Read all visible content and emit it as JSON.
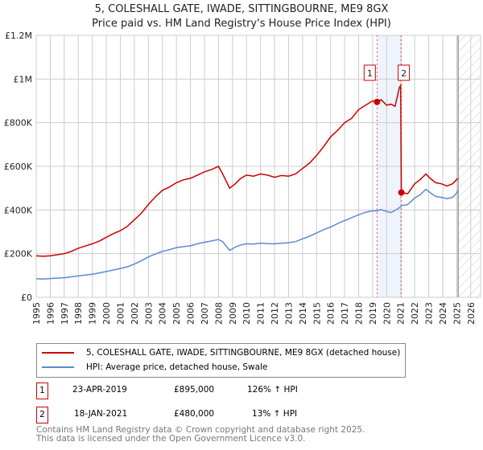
{
  "chart_data": {
    "type": "line",
    "title": "5, COLESHALL GATE, IWADE, SITTINGBOURNE, ME9 8GX",
    "subtitle": "Price paid vs. HM Land Registry's House Price Index (HPI)",
    "xlim": [
      1995,
      2026.7
    ],
    "ylim": [
      0,
      1200000
    ],
    "yticks": [
      {
        "v": 0,
        "l": "£0"
      },
      {
        "v": 200000,
        "l": "£200K"
      },
      {
        "v": 400000,
        "l": "£400K"
      },
      {
        "v": 600000,
        "l": "£600K"
      },
      {
        "v": 800000,
        "l": "£800K"
      },
      {
        "v": 1000000,
        "l": "£1M"
      },
      {
        "v": 1200000,
        "l": "£1.2M"
      }
    ],
    "xticks": [
      1995,
      1996,
      1997,
      1998,
      1999,
      2000,
      2001,
      2002,
      2003,
      2004,
      2005,
      2006,
      2007,
      2008,
      2009,
      2010,
      2011,
      2012,
      2013,
      2014,
      2015,
      2016,
      2017,
      2018,
      2019,
      2020,
      2021,
      2022,
      2023,
      2024,
      2025,
      2026
    ],
    "grid": true,
    "forecast_hatch_from": 2025.1,
    "shaded_between": [
      2019.31,
      2021.05
    ],
    "series": [
      {
        "name": "5, COLESHALL GATE, IWADE, SITTINGBOURNE, ME9 8GX (detached house)",
        "color": "#cc0000",
        "x": [
          1995,
          1995.5,
          1996,
          1996.5,
          1997,
          1997.5,
          1998,
          1998.5,
          1999,
          1999.5,
          2000,
          2000.5,
          2001,
          2001.5,
          2002,
          2002.5,
          2003,
          2003.5,
          2004,
          2004.5,
          2005,
          2005.5,
          2006,
          2006.5,
          2007,
          2007.5,
          2008,
          2008.3,
          2008.8,
          2009.2,
          2009.6,
          2010,
          2010.5,
          2011,
          2011.5,
          2012,
          2012.5,
          2013,
          2013.5,
          2014,
          2014.5,
          2015,
          2015.5,
          2016,
          2016.5,
          2017,
          2017.5,
          2018,
          2018.5,
          2019,
          2019.31,
          2019.6,
          2020,
          2020.3,
          2020.6,
          2020.9,
          2021.0,
          2021.05,
          2021.5,
          2022,
          2022.4,
          2022.8,
          2023.1,
          2023.5,
          2023.9,
          2024.3,
          2024.7,
          2025,
          2025.1
        ],
        "y": [
          190000,
          188000,
          190000,
          195000,
          200000,
          210000,
          225000,
          235000,
          245000,
          258000,
          275000,
          292000,
          305000,
          325000,
          355000,
          385000,
          425000,
          460000,
          490000,
          505000,
          525000,
          538000,
          545000,
          560000,
          575000,
          585000,
          600000,
          565000,
          500000,
          520000,
          545000,
          560000,
          555000,
          565000,
          560000,
          550000,
          558000,
          555000,
          565000,
          590000,
          615000,
          650000,
          690000,
          735000,
          765000,
          800000,
          820000,
          860000,
          880000,
          900000,
          895000,
          905000,
          880000,
          885000,
          875000,
          960000,
          970000,
          480000,
          475000,
          520000,
          540000,
          565000,
          545000,
          525000,
          520000,
          510000,
          520000,
          540000,
          545000
        ]
      },
      {
        "name": "HPI: Average price, detached house, Swale",
        "color": "#5b8bd0",
        "x": [
          1995,
          1995.5,
          1996,
          1996.5,
          1997,
          1997.5,
          1998,
          1998.5,
          1999,
          1999.5,
          2000,
          2000.5,
          2001,
          2001.5,
          2002,
          2002.5,
          2003,
          2003.5,
          2004,
          2004.5,
          2005,
          2005.5,
          2006,
          2006.5,
          2007,
          2007.5,
          2008,
          2008.3,
          2008.8,
          2009.2,
          2009.6,
          2010,
          2010.5,
          2011,
          2011.5,
          2012,
          2012.5,
          2013,
          2013.5,
          2014,
          2014.5,
          2015,
          2015.5,
          2016,
          2016.5,
          2017,
          2017.5,
          2018,
          2018.5,
          2019,
          2019.31,
          2019.6,
          2020,
          2020.3,
          2020.6,
          2020.9,
          2021.0,
          2021.05,
          2021.5,
          2022,
          2022.4,
          2022.8,
          2023.1,
          2023.5,
          2023.9,
          2024.3,
          2024.7,
          2025,
          2025.1
        ],
        "y": [
          85000,
          84000,
          86000,
          88000,
          90000,
          94000,
          98000,
          102000,
          106000,
          112000,
          118000,
          125000,
          132000,
          140000,
          152000,
          168000,
          185000,
          198000,
          210000,
          218000,
          228000,
          232000,
          236000,
          245000,
          252000,
          258000,
          265000,
          255000,
          215000,
          230000,
          240000,
          245000,
          244000,
          248000,
          246000,
          245000,
          248000,
          250000,
          255000,
          268000,
          280000,
          295000,
          310000,
          322000,
          338000,
          352000,
          365000,
          378000,
          390000,
          396000,
          396000,
          402000,
          393000,
          388000,
          398000,
          410000,
          415000,
          420000,
          425000,
          455000,
          470000,
          495000,
          480000,
          462000,
          458000,
          452000,
          458000,
          478000,
          490000
        ]
      }
    ],
    "sales": [
      {
        "label": "1",
        "x": 2019.31,
        "y": 895000
      },
      {
        "label": "2",
        "x": 2021.05,
        "y": 480000
      }
    ]
  },
  "legend": {
    "red": "5, COLESHALL GATE, IWADE, SITTINGBOURNE, ME9 8GX (detached house)",
    "blue": "HPI: Average price, detached house, Swale"
  },
  "transactions": [
    {
      "num": "1",
      "date": "23-APR-2019",
      "price": "£895,000",
      "hpi": "126% ↑ HPI"
    },
    {
      "num": "2",
      "date": "18-JAN-2021",
      "price": "£480,000",
      "hpi": "13% ↑ HPI"
    }
  ],
  "footer": {
    "line1": "Contains HM Land Registry data © Crown copyright and database right 2025.",
    "line2": "This data is licensed under the Open Government Licence v3.0."
  }
}
